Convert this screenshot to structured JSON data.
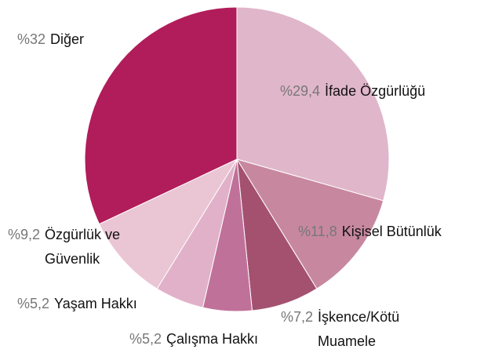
{
  "chart_data": {
    "type": "pie",
    "categories": [
      "İfade Özgürlüğü",
      "Kişisel Bütünlük",
      "İşkence/Kötü Muamele",
      "Çalışma Hakkı",
      "Yaşam Hakkı",
      "Özgürlük ve Güvenlik",
      "Diğer"
    ],
    "values": [
      29.4,
      11.8,
      7.2,
      5.2,
      5.2,
      9.2,
      32
    ],
    "value_labels": [
      "%29,4",
      "%11,8",
      "%7,2",
      "%5,2",
      "%5,2",
      "%9,2",
      "%32"
    ],
    "colors": [
      "#e0b6ca",
      "#c7889f",
      "#a4516f",
      "#c0719a",
      "#e1b1c9",
      "#eac5d3",
      "#b11c5a"
    ]
  }
}
